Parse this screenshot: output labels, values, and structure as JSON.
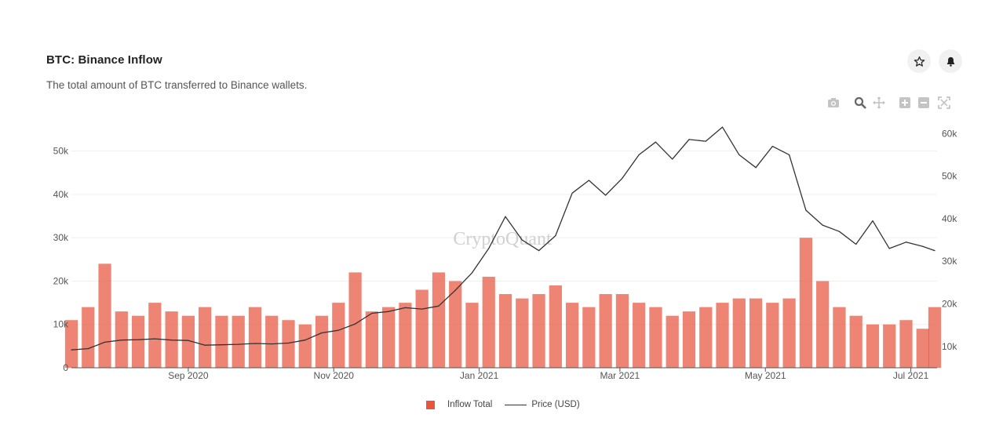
{
  "header": {
    "title": "BTC: Binance Inflow",
    "subtitle": "The total amount of BTC transferred to Binance wallets."
  },
  "buttons": {
    "favorite_icon": "star-icon",
    "alert_icon": "bell-icon"
  },
  "modebar": [
    "camera-icon",
    "zoom-icon",
    "pan-icon",
    "zoom-in-icon",
    "zoom-out-icon",
    "autoscale-icon"
  ],
  "watermark": "CryptoQuant",
  "colors": {
    "bar": "#e8543e",
    "line": "#333333",
    "grid": "#efefef"
  },
  "legend": {
    "bar_label": "Inflow Total",
    "line_label": "Price (USD)"
  },
  "chart_data": {
    "type": "bar",
    "title": "BTC: Binance Inflow",
    "x_range": [
      "2020-07-14",
      "2021-07-12"
    ],
    "x_ticks": [
      {
        "date": "2020-09-01",
        "label": "Sep 2020"
      },
      {
        "date": "2020-11-01",
        "label": "Nov 2020"
      },
      {
        "date": "2021-01-01",
        "label": "Jan 2021"
      },
      {
        "date": "2021-03-01",
        "label": "Mar 2021"
      },
      {
        "date": "2021-05-01",
        "label": "May 2021"
      },
      {
        "date": "2021-07-01",
        "label": "Jul 2021"
      }
    ],
    "y_left": {
      "range": [
        0,
        57000
      ],
      "ticks": [
        0,
        10000,
        20000,
        30000,
        40000,
        50000
      ],
      "tick_labels": [
        "0",
        "10k",
        "20k",
        "30k",
        "40k",
        "50k"
      ]
    },
    "y_right": {
      "range": [
        5000,
        63000
      ],
      "ticks": [
        10000,
        20000,
        30000,
        40000,
        50000,
        60000
      ],
      "tick_labels": [
        "10k",
        "20k",
        "30k",
        "40k",
        "50k",
        "60k"
      ]
    },
    "grid": true,
    "legend_position": "bottom-center",
    "bar_series": {
      "name": "Inflow Total",
      "dates": [
        "2020-07-14",
        "2020-07-21",
        "2020-07-28",
        "2020-08-04",
        "2020-08-11",
        "2020-08-18",
        "2020-08-25",
        "2020-09-01",
        "2020-09-08",
        "2020-09-15",
        "2020-09-22",
        "2020-09-29",
        "2020-10-06",
        "2020-10-13",
        "2020-10-20",
        "2020-10-27",
        "2020-11-03",
        "2020-11-10",
        "2020-11-17",
        "2020-11-24",
        "2020-12-01",
        "2020-12-08",
        "2020-12-15",
        "2020-12-22",
        "2020-12-29",
        "2021-01-05",
        "2021-01-12",
        "2021-01-19",
        "2021-01-26",
        "2021-02-02",
        "2021-02-09",
        "2021-02-16",
        "2021-02-23",
        "2021-03-02",
        "2021-03-09",
        "2021-03-16",
        "2021-03-23",
        "2021-03-30",
        "2021-04-06",
        "2021-04-13",
        "2021-04-20",
        "2021-04-27",
        "2021-05-04",
        "2021-05-11",
        "2021-05-18",
        "2021-05-25",
        "2021-06-01",
        "2021-06-08",
        "2021-06-15",
        "2021-06-22",
        "2021-06-29",
        "2021-07-06",
        "2021-07-11"
      ],
      "values": [
        11000,
        14000,
        24000,
        13000,
        12000,
        15000,
        13000,
        12000,
        14000,
        12000,
        12000,
        14000,
        12000,
        11000,
        10000,
        12000,
        15000,
        22000,
        13000,
        14000,
        15000,
        18000,
        22000,
        20000,
        15000,
        21000,
        17000,
        16000,
        17000,
        19000,
        15000,
        14000,
        17000,
        17000,
        15000,
        14000,
        12000,
        13000,
        14000,
        15000,
        16000,
        16000,
        15000,
        16000,
        30000,
        20000,
        14000,
        12000,
        10000,
        10000,
        11000,
        9000,
        14000
      ]
    },
    "line_series": {
      "name": "Price (USD)",
      "dates": [
        "2020-07-14",
        "2020-07-21",
        "2020-07-28",
        "2020-08-04",
        "2020-08-11",
        "2020-08-18",
        "2020-08-25",
        "2020-09-01",
        "2020-09-08",
        "2020-09-15",
        "2020-09-22",
        "2020-09-29",
        "2020-10-06",
        "2020-10-13",
        "2020-10-20",
        "2020-10-27",
        "2020-11-03",
        "2020-11-10",
        "2020-11-17",
        "2020-11-24",
        "2020-12-01",
        "2020-12-08",
        "2020-12-15",
        "2020-12-22",
        "2020-12-29",
        "2021-01-05",
        "2021-01-12",
        "2021-01-19",
        "2021-01-26",
        "2021-02-02",
        "2021-02-09",
        "2021-02-16",
        "2021-02-23",
        "2021-03-02",
        "2021-03-09",
        "2021-03-16",
        "2021-03-23",
        "2021-03-30",
        "2021-04-06",
        "2021-04-13",
        "2021-04-20",
        "2021-04-27",
        "2021-05-04",
        "2021-05-11",
        "2021-05-18",
        "2021-05-25",
        "2021-06-01",
        "2021-06-08",
        "2021-06-15",
        "2021-06-22",
        "2021-06-29",
        "2021-07-06",
        "2021-07-11"
      ],
      "values": [
        9200,
        9500,
        11000,
        11500,
        11600,
        11800,
        11500,
        11400,
        10300,
        10400,
        10500,
        10700,
        10600,
        10800,
        11500,
        13200,
        13800,
        15300,
        17800,
        18200,
        19100,
        18800,
        19500,
        23200,
        27300,
        33000,
        40500,
        35000,
        32500,
        36000,
        46000,
        49000,
        45500,
        49500,
        55000,
        58000,
        54000,
        58600,
        58200,
        61500,
        55000,
        52000,
        57000,
        55000,
        42000,
        38500,
        37000,
        34000,
        39500,
        33000,
        34500,
        33500,
        32500
      ]
    }
  }
}
